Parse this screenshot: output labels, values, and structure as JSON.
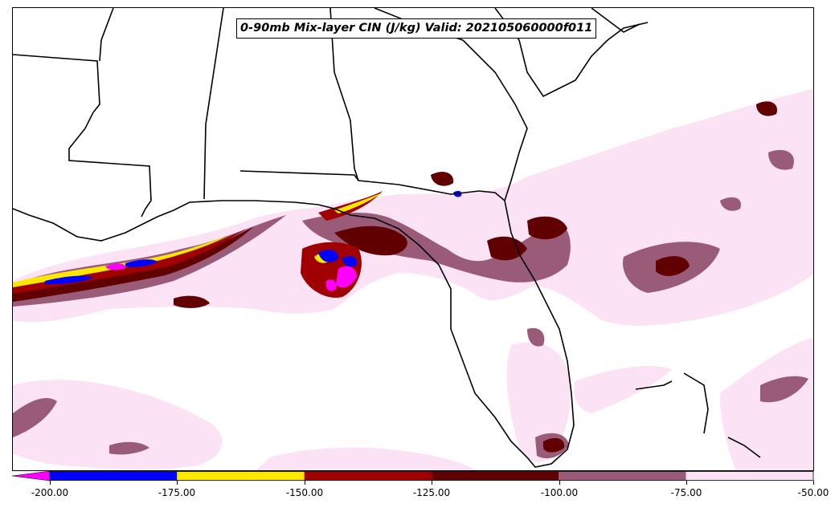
{
  "title": "0-90mb Mix-layer CIN (J/kg) Valid: 202105060000f011",
  "colorbar": {
    "ticks": [
      "-200.00",
      "-175.00",
      "-150.00",
      "-125.00",
      "-100.00",
      "-75.00",
      "-50.00"
    ],
    "extend_min_color": "#ff00ff",
    "bins": [
      {
        "from": -200,
        "to": -175,
        "color": "#0000ff"
      },
      {
        "from": -175,
        "to": -150,
        "color": "#ffe800"
      },
      {
        "from": -150,
        "to": -125,
        "color": "#a00000"
      },
      {
        "from": -125,
        "to": -100,
        "color": "#600000"
      },
      {
        "from": -100,
        "to": -75,
        "color": "#9a5b78"
      },
      {
        "from": -75,
        "to": -50,
        "color": "#fbe3f5"
      }
    ]
  },
  "colors": {
    "cin_50_75": "#fbe3f5",
    "cin_75_100": "#9a5b78",
    "cin_100_125": "#600000",
    "cin_125_150": "#a00000",
    "cin_150_175": "#ffe800",
    "cin_175_200": "#0000ff",
    "cin_lt_200": "#ff00ff",
    "coastline": "#000000"
  }
}
